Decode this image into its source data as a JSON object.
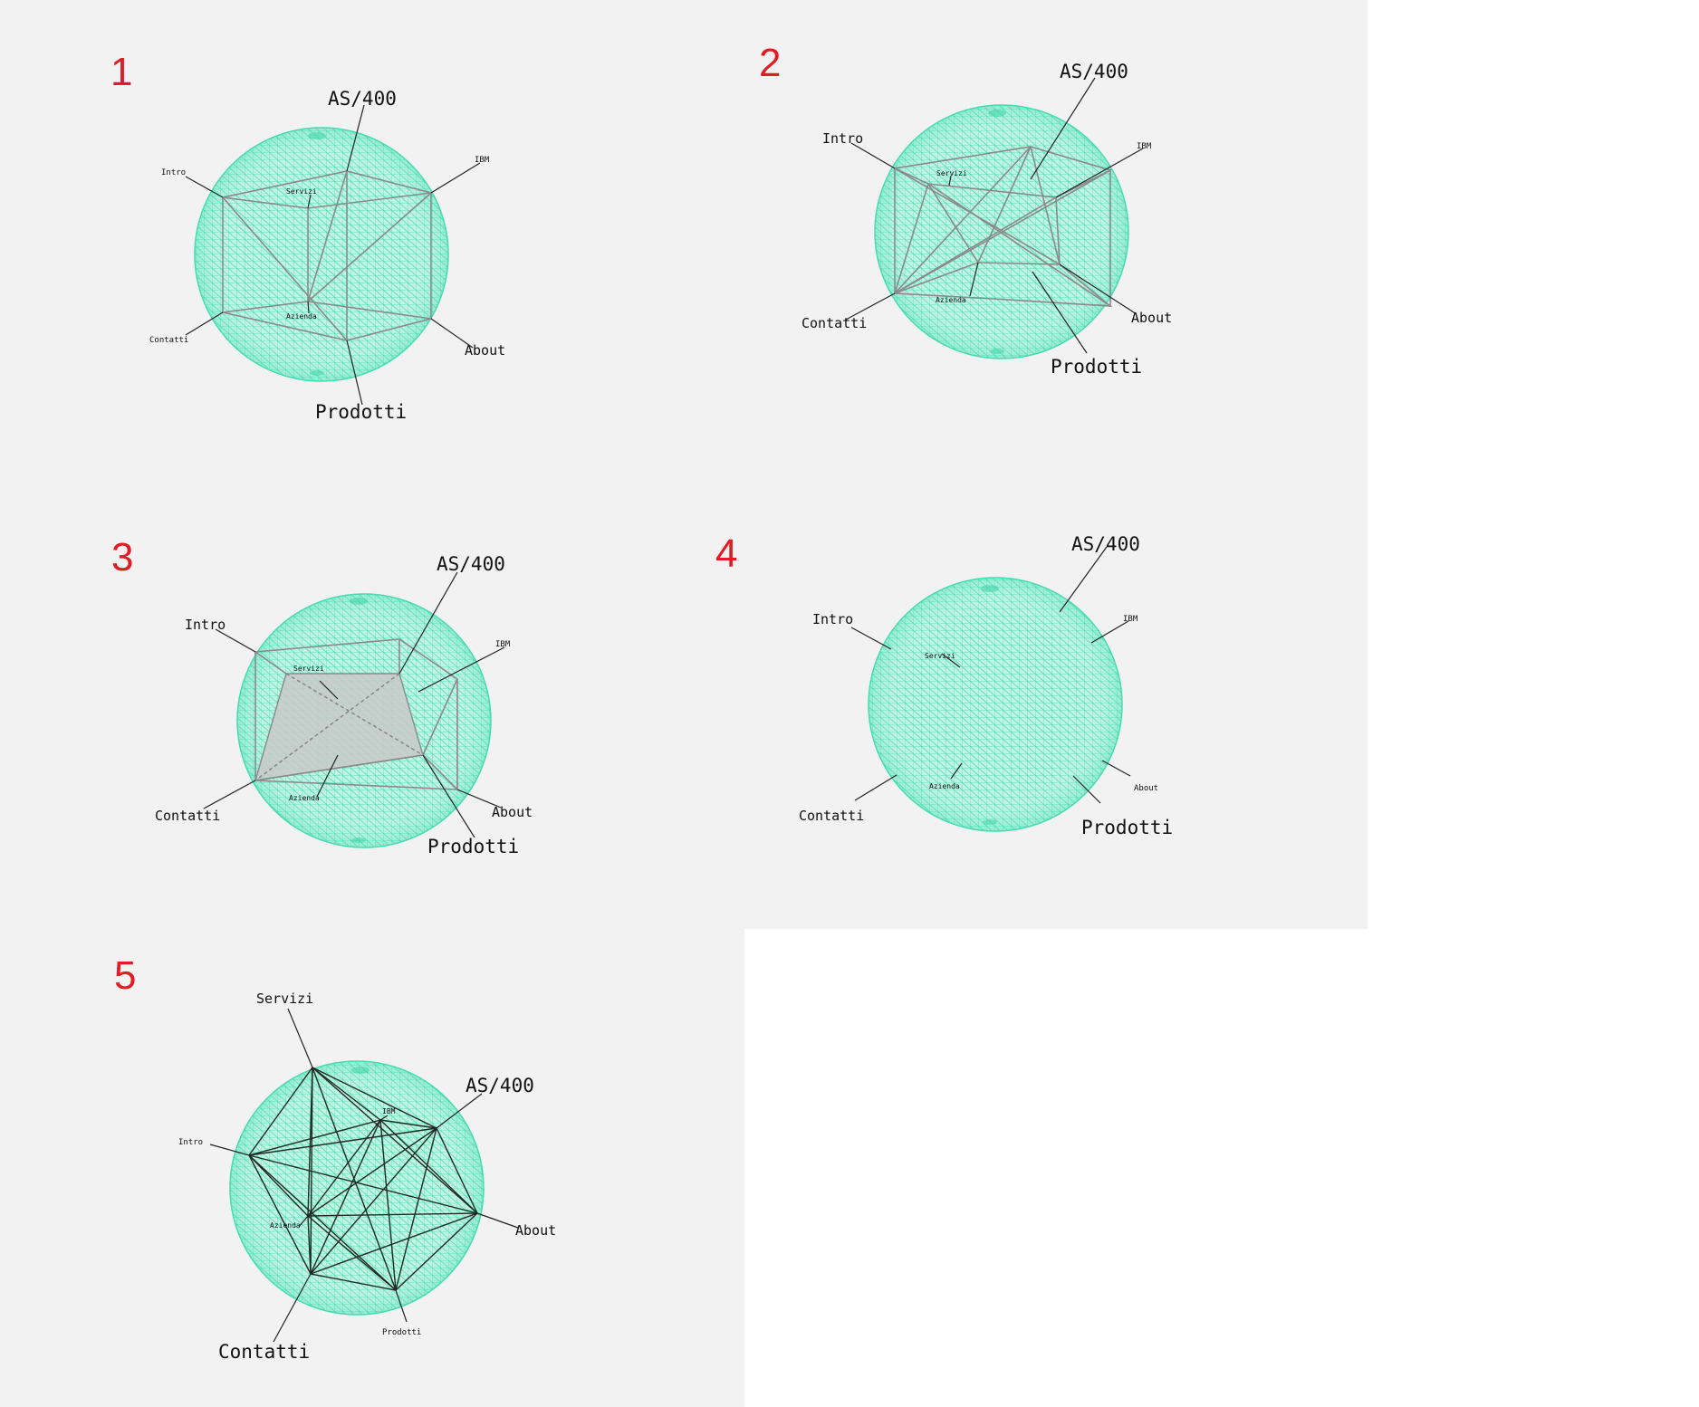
{
  "colors": {
    "background": "#f2f2f2",
    "sphere_wire": "#46dcae",
    "panel_number": "#e31b23",
    "edges": "#8a8a8a",
    "label": "#111111"
  },
  "panels": [
    {
      "number": "1",
      "labels": {
        "as400": "AS/400",
        "ibm": "IBM",
        "intro": "Intro",
        "servizi": "Servizi",
        "azienda": "Azienda",
        "contatti": "Contatti",
        "about": "About",
        "prodotti": "Prodotti"
      }
    },
    {
      "number": "2",
      "labels": {
        "as400": "AS/400",
        "ibm": "IBM",
        "intro": "Intro",
        "servizi": "Servizi",
        "azienda": "Azienda",
        "contatti": "Contatti",
        "about": "About",
        "prodotti": "Prodotti"
      }
    },
    {
      "number": "3",
      "labels": {
        "as400": "AS/400",
        "ibm": "IBM",
        "intro": "Intro",
        "servizi": "Servizi",
        "azienda": "Azienda",
        "contatti": "Contatti",
        "about": "About",
        "prodotti": "Prodotti"
      }
    },
    {
      "number": "4",
      "labels": {
        "as400": "AS/400",
        "ibm": "IBM",
        "intro": "Intro",
        "servizi": "Servizi",
        "azienda": "Azienda",
        "contatti": "Contatti",
        "about": "About",
        "prodotti": "Prodotti"
      }
    },
    {
      "number": "5",
      "labels": {
        "servizi": "Servizi",
        "as400": "AS/400",
        "ibm": "IBM",
        "intro": "Intro",
        "azienda": "Azienda",
        "about": "About",
        "contatti": "Contatti",
        "prodotti": "Prodotti"
      }
    }
  ]
}
